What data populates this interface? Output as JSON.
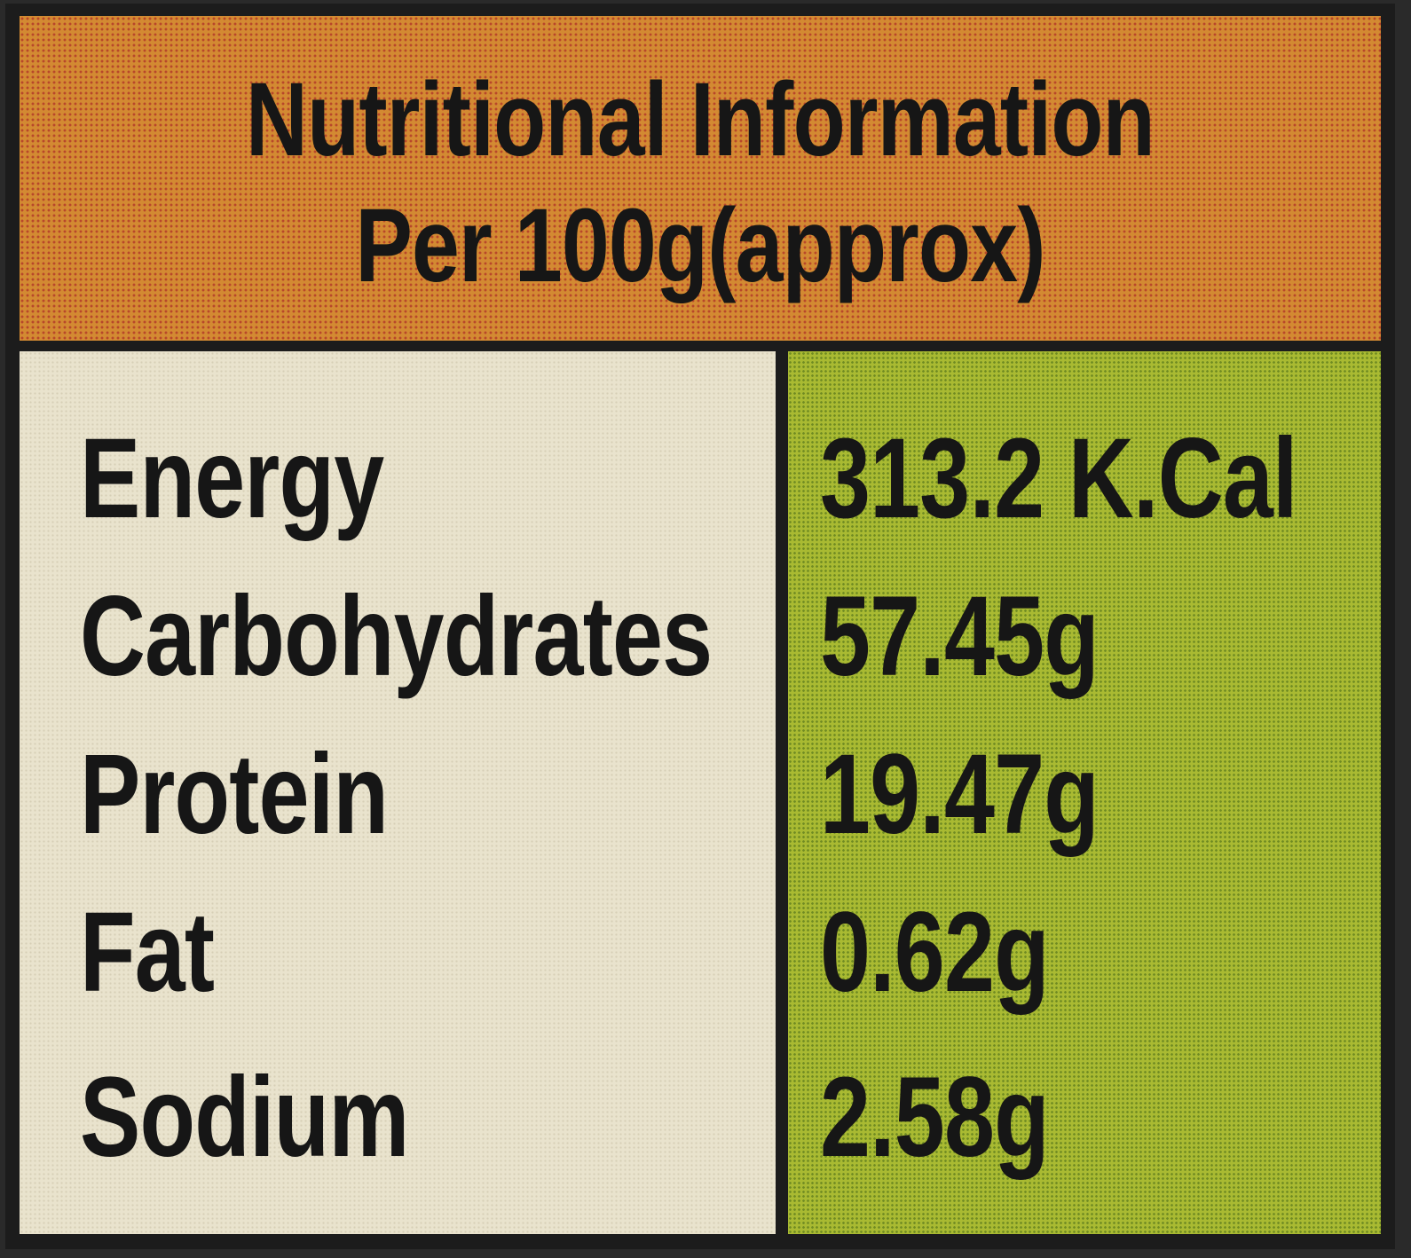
{
  "header": {
    "title": "Nutritional Information",
    "subtitle": "Per 100g(approx)"
  },
  "nutrients": [
    {
      "name": "Energy",
      "value": "313.2 K.Cal"
    },
    {
      "name": "Carbohydrates",
      "value": "57.45g"
    },
    {
      "name": "Protein",
      "value": "19.47g"
    },
    {
      "name": "Fat",
      "value": "0.62g"
    },
    {
      "name": "Sodium",
      "value": "2.58g"
    }
  ],
  "colors": {
    "header": "#d38a32",
    "left_column": "#e9e3cd",
    "right_column": "#a9ba32",
    "border": "#1c1c1c"
  }
}
